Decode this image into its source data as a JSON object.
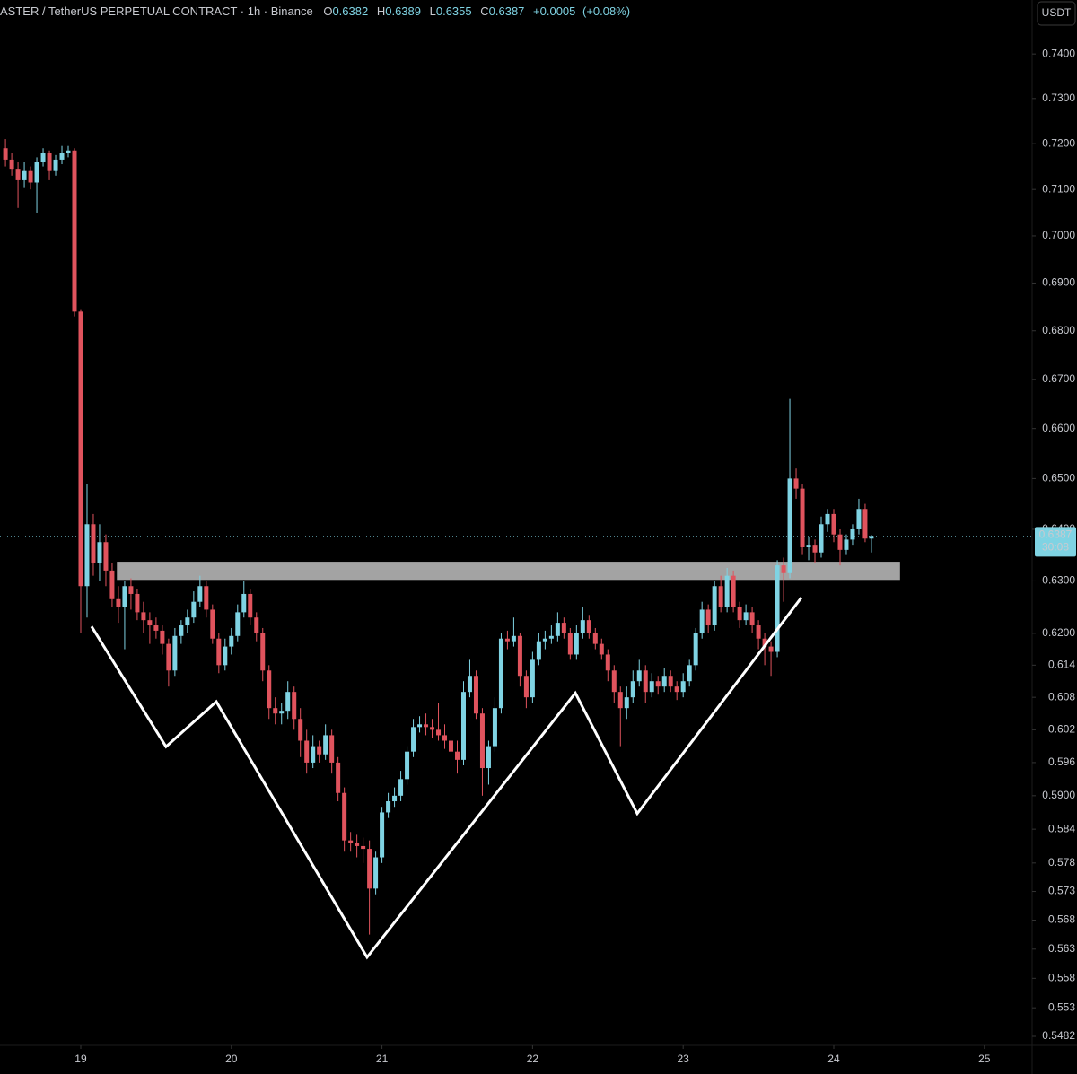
{
  "chart_data": {
    "type": "candlestick",
    "title": "ASTER / TetherUS PERPETUAL CONTRACT · 1h · Binance",
    "ohlc_labels": [
      "O",
      "H",
      "L",
      "C"
    ],
    "change": {
      "value": 0.0005,
      "label": "+0.0005"
    },
    "change_pct": {
      "value": 0.08,
      "label": "(+0.08%)"
    },
    "currency": "USDT",
    "countdown": "30:08",
    "up_color": "#7fd3e3",
    "down_color": "#e0535d",
    "log_scale": true,
    "ylim": [
      0.5467,
      0.7523
    ],
    "xlim": [
      18.4637,
      25.3171
    ],
    "yticks": [
      {
        "value": 0.74,
        "label": "0.7400"
      },
      {
        "value": 0.73,
        "label": "0.7300"
      },
      {
        "value": 0.72,
        "label": "0.7200"
      },
      {
        "value": 0.71,
        "label": "0.7100"
      },
      {
        "value": 0.7,
        "label": "0.7000"
      },
      {
        "value": 0.69,
        "label": "0.6900"
      },
      {
        "value": 0.68,
        "label": "0.6800"
      },
      {
        "value": 0.67,
        "label": "0.6700"
      },
      {
        "value": 0.66,
        "label": "0.6600"
      },
      {
        "value": 0.65,
        "label": "0.6500"
      },
      {
        "value": 0.64,
        "label": "0.6400"
      },
      {
        "value": 0.63,
        "label": "0.6300"
      },
      {
        "value": 0.62,
        "label": "0.6200"
      },
      0.614,
      0.608,
      0.602,
      0.596,
      {
        "value": 0.59,
        "label": "0.5900"
      },
      0.584,
      0.578,
      0.573,
      0.568,
      0.563,
      0.558,
      0.553,
      0.5482
    ],
    "xticks": [
      19,
      20,
      21,
      22,
      23,
      24,
      25
    ],
    "x": [
      18.5,
      18.5417,
      18.5833,
      18.625,
      18.6667,
      18.7083,
      18.75,
      18.7917,
      18.8333,
      18.875,
      18.9167,
      18.9583,
      19,
      19.0417,
      19.0833,
      19.125,
      19.1667,
      19.2083,
      19.25,
      19.2917,
      19.3333,
      19.375,
      19.4167,
      19.4583,
      19.5,
      19.5417,
      19.5833,
      19.625,
      19.6667,
      19.7083,
      19.75,
      19.7917,
      19.8333,
      19.875,
      19.9167,
      19.9583,
      20,
      20.0417,
      20.0833,
      20.125,
      20.1667,
      20.2083,
      20.25,
      20.2917,
      20.3333,
      20.375,
      20.4167,
      20.4583,
      20.5,
      20.5417,
      20.5833,
      20.625,
      20.6667,
      20.7083,
      20.75,
      20.7917,
      20.8333,
      20.875,
      20.9167,
      20.9583,
      21,
      21.0417,
      21.0833,
      21.125,
      21.1667,
      21.2083,
      21.25,
      21.2917,
      21.3333,
      21.375,
      21.4167,
      21.4583,
      21.5,
      21.5417,
      21.5833,
      21.625,
      21.6667,
      21.7083,
      21.75,
      21.7917,
      21.8333,
      21.875,
      21.9167,
      21.9583,
      22,
      22.0417,
      22.0833,
      22.125,
      22.1667,
      22.2083,
      22.25,
      22.2917,
      22.3333,
      22.375,
      22.4167,
      22.4583,
      22.5,
      22.5417,
      22.5833,
      22.625,
      22.6667,
      22.7083,
      22.75,
      22.7917,
      22.8333,
      22.875,
      22.9167,
      22.9583,
      23,
      23.0417,
      23.0833,
      23.125,
      23.1667,
      23.2083,
      23.25,
      23.2917,
      23.3333,
      23.375,
      23.4167,
      23.4583,
      23.5,
      23.5417,
      23.5833,
      23.625,
      23.6667,
      23.7083,
      23.75,
      23.7917,
      23.8333,
      23.875,
      23.9167,
      23.9583,
      24,
      24.0417,
      24.0833,
      24.125,
      24.1667,
      24.2083,
      24.25
    ],
    "ohlc": [
      [
        0.719,
        0.721,
        0.715,
        0.7165
      ],
      [
        0.7165,
        0.718,
        0.713,
        0.7145
      ],
      [
        0.7145,
        0.716,
        0.706,
        0.712
      ],
      [
        0.712,
        0.716,
        0.7105,
        0.714
      ],
      [
        0.714,
        0.715,
        0.71,
        0.7115
      ],
      [
        0.7115,
        0.717,
        0.705,
        0.716
      ],
      [
        0.716,
        0.719,
        0.715,
        0.718
      ],
      [
        0.718,
        0.7185,
        0.712,
        0.714
      ],
      [
        0.714,
        0.7175,
        0.713,
        0.7165
      ],
      [
        0.7165,
        0.7195,
        0.7155,
        0.718
      ],
      [
        0.718,
        0.7195,
        0.717,
        0.7185
      ],
      [
        0.7185,
        0.719,
        0.683,
        0.684
      ],
      [
        0.684,
        0.6845,
        0.62,
        0.629
      ],
      [
        0.629,
        0.649,
        0.623,
        0.641
      ],
      [
        0.641,
        0.643,
        0.631,
        0.6335
      ],
      [
        0.6335,
        0.641,
        0.63,
        0.6375
      ],
      [
        0.6375,
        0.639,
        0.629,
        0.632
      ],
      [
        0.632,
        0.6335,
        0.625,
        0.6265
      ],
      [
        0.6265,
        0.629,
        0.622,
        0.625
      ],
      [
        0.625,
        0.63,
        0.617,
        0.629
      ],
      [
        0.629,
        0.6305,
        0.6245,
        0.6275
      ],
      [
        0.6275,
        0.6285,
        0.6225,
        0.624
      ],
      [
        0.624,
        0.626,
        0.62,
        0.6225
      ],
      [
        0.6225,
        0.624,
        0.618,
        0.6215
      ],
      [
        0.6215,
        0.623,
        0.619,
        0.6205
      ],
      [
        0.6205,
        0.6215,
        0.616,
        0.618
      ],
      [
        0.618,
        0.619,
        0.61,
        0.613
      ],
      [
        0.613,
        0.621,
        0.612,
        0.6195
      ],
      [
        0.6195,
        0.6225,
        0.618,
        0.6215
      ],
      [
        0.6215,
        0.6245,
        0.62,
        0.623
      ],
      [
        0.623,
        0.628,
        0.622,
        0.626
      ],
      [
        0.626,
        0.631,
        0.625,
        0.629
      ],
      [
        0.629,
        0.63,
        0.623,
        0.6245
      ],
      [
        0.6245,
        0.6255,
        0.618,
        0.619
      ],
      [
        0.619,
        0.62,
        0.6125,
        0.614
      ],
      [
        0.614,
        0.619,
        0.613,
        0.6175
      ],
      [
        0.6175,
        0.621,
        0.616,
        0.6195
      ],
      [
        0.6195,
        0.6255,
        0.6185,
        0.624
      ],
      [
        0.624,
        0.63,
        0.623,
        0.6275
      ],
      [
        0.6275,
        0.6285,
        0.6215,
        0.623
      ],
      [
        0.623,
        0.624,
        0.6185,
        0.62
      ],
      [
        0.62,
        0.621,
        0.611,
        0.613
      ],
      [
        0.613,
        0.614,
        0.604,
        0.606
      ],
      [
        0.606,
        0.608,
        0.603,
        0.605
      ],
      [
        0.605,
        0.607,
        0.603,
        0.6055
      ],
      [
        0.6055,
        0.611,
        0.604,
        0.609
      ],
      [
        0.609,
        0.61,
        0.602,
        0.604
      ],
      [
        0.604,
        0.606,
        0.597,
        0.6
      ],
      [
        0.6,
        0.602,
        0.594,
        0.596
      ],
      [
        0.596,
        0.601,
        0.595,
        0.599
      ],
      [
        0.599,
        0.6,
        0.596,
        0.5975
      ],
      [
        0.5975,
        0.603,
        0.5965,
        0.601
      ],
      [
        0.601,
        0.602,
        0.594,
        0.596
      ],
      [
        0.596,
        0.597,
        0.589,
        0.5905
      ],
      [
        0.5905,
        0.5915,
        0.58,
        0.582
      ],
      [
        0.582,
        0.5835,
        0.58,
        0.5815
      ],
      [
        0.5815,
        0.583,
        0.579,
        0.581
      ],
      [
        0.581,
        0.5825,
        0.578,
        0.5805
      ],
      [
        0.5805,
        0.582,
        0.5655,
        0.5735
      ],
      [
        0.5735,
        0.58,
        0.5725,
        0.579
      ],
      [
        0.579,
        0.588,
        0.578,
        0.587
      ],
      [
        0.587,
        0.5905,
        0.586,
        0.589
      ],
      [
        0.589,
        0.5915,
        0.588,
        0.59
      ],
      [
        0.59,
        0.5945,
        0.589,
        0.593
      ],
      [
        0.593,
        0.599,
        0.592,
        0.598
      ],
      [
        0.598,
        0.604,
        0.597,
        0.6025
      ],
      [
        0.6025,
        0.6045,
        0.6015,
        0.603
      ],
      [
        0.603,
        0.605,
        0.601,
        0.6025
      ],
      [
        0.6025,
        0.604,
        0.6005,
        0.602
      ],
      [
        0.602,
        0.607,
        0.6,
        0.601
      ],
      [
        0.601,
        0.603,
        0.5985,
        0.6
      ],
      [
        0.6,
        0.602,
        0.596,
        0.598
      ],
      [
        0.598,
        0.6,
        0.594,
        0.5965
      ],
      [
        0.5965,
        0.611,
        0.5955,
        0.609
      ],
      [
        0.609,
        0.615,
        0.608,
        0.612
      ],
      [
        0.612,
        0.613,
        0.604,
        0.605
      ],
      [
        0.605,
        0.606,
        0.59,
        0.595
      ],
      [
        0.595,
        0.6,
        0.592,
        0.599
      ],
      [
        0.599,
        0.608,
        0.598,
        0.606
      ],
      [
        0.606,
        0.62,
        0.605,
        0.619
      ],
      [
        0.619,
        0.6205,
        0.617,
        0.6185
      ],
      [
        0.6185,
        0.623,
        0.6175,
        0.6195
      ],
      [
        0.6195,
        0.62,
        0.61,
        0.612
      ],
      [
        0.612,
        0.613,
        0.606,
        0.608
      ],
      [
        0.608,
        0.6165,
        0.607,
        0.615
      ],
      [
        0.615,
        0.62,
        0.614,
        0.6185
      ],
      [
        0.6185,
        0.6205,
        0.617,
        0.619
      ],
      [
        0.619,
        0.6215,
        0.618,
        0.6195
      ],
      [
        0.6195,
        0.624,
        0.6185,
        0.622
      ],
      [
        0.622,
        0.623,
        0.619,
        0.62
      ],
      [
        0.62,
        0.621,
        0.615,
        0.616
      ],
      [
        0.616,
        0.6215,
        0.615,
        0.62
      ],
      [
        0.62,
        0.625,
        0.619,
        0.6225
      ],
      [
        0.6225,
        0.6235,
        0.619,
        0.62
      ],
      [
        0.62,
        0.621,
        0.617,
        0.618
      ],
      [
        0.618,
        0.619,
        0.615,
        0.616
      ],
      [
        0.616,
        0.617,
        0.611,
        0.613
      ],
      [
        0.613,
        0.614,
        0.607,
        0.609
      ],
      [
        0.609,
        0.61,
        0.599,
        0.606
      ],
      [
        0.606,
        0.61,
        0.604,
        0.608
      ],
      [
        0.608,
        0.613,
        0.607,
        0.611
      ],
      [
        0.611,
        0.615,
        0.61,
        0.613
      ],
      [
        0.613,
        0.614,
        0.607,
        0.609
      ],
      [
        0.609,
        0.6125,
        0.608,
        0.611
      ],
      [
        0.611,
        0.612,
        0.6085,
        0.61
      ],
      [
        0.61,
        0.6135,
        0.609,
        0.612
      ],
      [
        0.612,
        0.613,
        0.609,
        0.61
      ],
      [
        0.61,
        0.611,
        0.6075,
        0.609
      ],
      [
        0.609,
        0.6125,
        0.608,
        0.611
      ],
      [
        0.611,
        0.615,
        0.61,
        0.614
      ],
      [
        0.614,
        0.621,
        0.613,
        0.62
      ],
      [
        0.62,
        0.626,
        0.619,
        0.6245
      ],
      [
        0.6245,
        0.6255,
        0.62,
        0.6215
      ],
      [
        0.6215,
        0.63,
        0.6205,
        0.629
      ],
      [
        0.629,
        0.631,
        0.624,
        0.625
      ],
      [
        0.625,
        0.6325,
        0.624,
        0.631
      ],
      [
        0.631,
        0.632,
        0.624,
        0.625
      ],
      [
        0.625,
        0.626,
        0.621,
        0.6225
      ],
      [
        0.6225,
        0.6255,
        0.6215,
        0.624
      ],
      [
        0.624,
        0.625,
        0.62,
        0.6215
      ],
      [
        0.6215,
        0.6225,
        0.617,
        0.619
      ],
      [
        0.619,
        0.62,
        0.614,
        0.6175
      ],
      [
        0.6175,
        0.6185,
        0.612,
        0.6165
      ],
      [
        0.6165,
        0.634,
        0.6155,
        0.633
      ],
      [
        0.633,
        0.6345,
        0.626,
        0.6315
      ],
      [
        0.6315,
        0.666,
        0.6305,
        0.65
      ],
      [
        0.65,
        0.652,
        0.646,
        0.648
      ],
      [
        0.648,
        0.649,
        0.635,
        0.6365
      ],
      [
        0.6365,
        0.6385,
        0.634,
        0.637
      ],
      [
        0.637,
        0.638,
        0.6335,
        0.6355
      ],
      [
        0.6355,
        0.6425,
        0.6345,
        0.641
      ],
      [
        0.641,
        0.644,
        0.6395,
        0.643
      ],
      [
        0.643,
        0.644,
        0.6375,
        0.639
      ],
      [
        0.639,
        0.64,
        0.633,
        0.636
      ],
      [
        0.636,
        0.639,
        0.635,
        0.638
      ],
      [
        0.638,
        0.641,
        0.637,
        0.64
      ],
      [
        0.64,
        0.646,
        0.639,
        0.644
      ],
      [
        0.644,
        0.645,
        0.6375,
        0.6382
      ],
      [
        0.6382,
        0.6389,
        0.6355,
        0.6387
      ]
    ],
    "zone": {
      "x": [
        19.24,
        24.44
      ],
      "y": [
        0.6302,
        0.6337
      ],
      "color": "#a3a3a3"
    },
    "pattern": {
      "x": [
        19.0715,
        19.566,
        19.9,
        20.901,
        22.284,
        22.695,
        23.785
      ],
      "y": [
        0.6213,
        0.5989,
        0.6072,
        0.5616,
        0.6088,
        0.5868,
        0.6268
      ],
      "color": "#ffffff"
    }
  }
}
